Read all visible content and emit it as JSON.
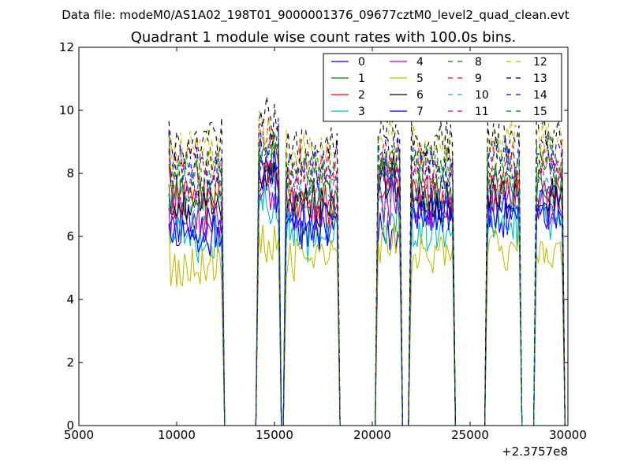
{
  "suptitle": "Data file: modeM0/AS1A02_198T01_9000001376_09677cztM0_level2_quad_clean.evt",
  "chart_data": {
    "type": "line",
    "title": "Quadrant 1 module wise count rates with 100.0s bins.",
    "xlabel": "",
    "ylabel": "",
    "x_offset_label": "+2.3757e8",
    "xlim": [
      5000,
      30000
    ],
    "ylim": [
      0,
      12
    ],
    "xticks": [
      5000,
      10000,
      15000,
      20000,
      25000,
      30000
    ],
    "xtick_labels": [
      "5000",
      "10000",
      "15000",
      "20000",
      "25000",
      "30000"
    ],
    "yticks": [
      0,
      2,
      4,
      6,
      8,
      10,
      12
    ],
    "ytick_labels": [
      "0",
      "2",
      "4",
      "6",
      "8",
      "10",
      "12"
    ],
    "grid": false,
    "legend_position": "top-right",
    "legend_columns": 4,
    "segments": [
      {
        "x_start": 9600,
        "x_end": 12300
      },
      {
        "x_start": 14200,
        "x_end": 15200
      },
      {
        "x_start": 15600,
        "x_end": 18200
      },
      {
        "x_start": 20300,
        "x_end": 21400
      },
      {
        "x_start": 22000,
        "x_end": 24100
      },
      {
        "x_start": 25900,
        "x_end": 27500
      },
      {
        "x_start": 28400,
        "x_end": 29700
      }
    ],
    "zero_regions": [
      [
        12300,
        14200
      ],
      [
        15200,
        15600
      ],
      [
        18200,
        20300
      ],
      [
        21400,
        22000
      ],
      [
        24100,
        25900
      ],
      [
        27500,
        28400
      ]
    ],
    "series": [
      {
        "name": "0",
        "color": "#0000ff",
        "style": "solid",
        "mean": 6.3,
        "segment_means": [
          6.3,
          8.2,
          6.2,
          6.0,
          6.9,
          6.4,
          6.6
        ]
      },
      {
        "name": "1",
        "color": "#008000",
        "style": "solid",
        "mean": 7.3,
        "segment_means": [
          7.3,
          8.3,
          7.2,
          7.9,
          7.4,
          7.5,
          7.6
        ]
      },
      {
        "name": "2",
        "color": "#ff0000",
        "style": "solid",
        "mean": 7.1,
        "segment_means": [
          7.1,
          8.0,
          7.0,
          7.4,
          7.2,
          7.3,
          7.4
        ]
      },
      {
        "name": "3",
        "color": "#00bfbf",
        "style": "solid",
        "mean": 5.9,
        "segment_means": [
          5.9,
          7.0,
          6.0,
          6.6,
          6.3,
          6.5,
          6.7
        ]
      },
      {
        "name": "4",
        "color": "#bf00bf",
        "style": "solid",
        "mean": 6.6,
        "segment_means": [
          6.6,
          7.4,
          6.8,
          7.1,
          6.9,
          7.1,
          7.0
        ]
      },
      {
        "name": "5",
        "color": "#bfbf00",
        "style": "solid",
        "mean": 5.1,
        "segment_means": [
          5.1,
          5.8,
          5.4,
          5.8,
          5.5,
          5.6,
          5.5
        ]
      },
      {
        "name": "6",
        "color": "#000000",
        "style": "solid",
        "mean": 6.9,
        "segment_means": [
          6.9,
          7.8,
          7.0,
          7.8,
          7.2,
          7.4,
          7.4
        ]
      },
      {
        "name": "7",
        "color": "#0000ff",
        "style": "solid",
        "mean": 6.0,
        "segment_means": [
          6.0,
          7.5,
          6.3,
          8.0,
          6.7,
          6.9,
          7.0
        ]
      },
      {
        "name": "8",
        "color": "#008000",
        "style": "dashed",
        "mean": 8.0,
        "segment_means": [
          8.0,
          8.7,
          8.0,
          8.4,
          8.1,
          8.2,
          8.3
        ]
      },
      {
        "name": "9",
        "color": "#ff0000",
        "style": "dashed",
        "mean": 8.3,
        "segment_means": [
          8.3,
          9.0,
          8.2,
          8.6,
          8.3,
          8.4,
          8.5
        ]
      },
      {
        "name": "10",
        "color": "#00bfbf",
        "style": "dashed",
        "mean": 7.0,
        "segment_means": [
          7.0,
          7.8,
          7.0,
          7.4,
          7.1,
          7.2,
          7.3
        ]
      },
      {
        "name": "11",
        "color": "#bf00bf",
        "style": "dashed",
        "mean": 7.6,
        "segment_means": [
          7.6,
          8.3,
          7.6,
          8.0,
          7.7,
          7.8,
          7.9
        ]
      },
      {
        "name": "12",
        "color": "#bfbf00",
        "style": "dashed",
        "mean": 8.7,
        "segment_means": [
          8.7,
          9.4,
          8.7,
          9.2,
          8.8,
          9.0,
          9.1
        ]
      },
      {
        "name": "13",
        "color": "#000000",
        "style": "dashed",
        "mean": 9.0,
        "segment_means": [
          9.0,
          9.7,
          8.9,
          9.5,
          9.1,
          9.2,
          9.4
        ]
      },
      {
        "name": "14",
        "color": "#0000ff",
        "style": "dashed",
        "mean": 8.2,
        "segment_means": [
          8.2,
          8.9,
          8.1,
          8.7,
          8.3,
          8.5,
          8.6
        ]
      },
      {
        "name": "15",
        "color": "#008000",
        "style": "dashed",
        "mean": 8.1,
        "segment_means": [
          8.1,
          8.8,
          8.0,
          8.5,
          8.2,
          8.4,
          8.5
        ]
      }
    ]
  }
}
